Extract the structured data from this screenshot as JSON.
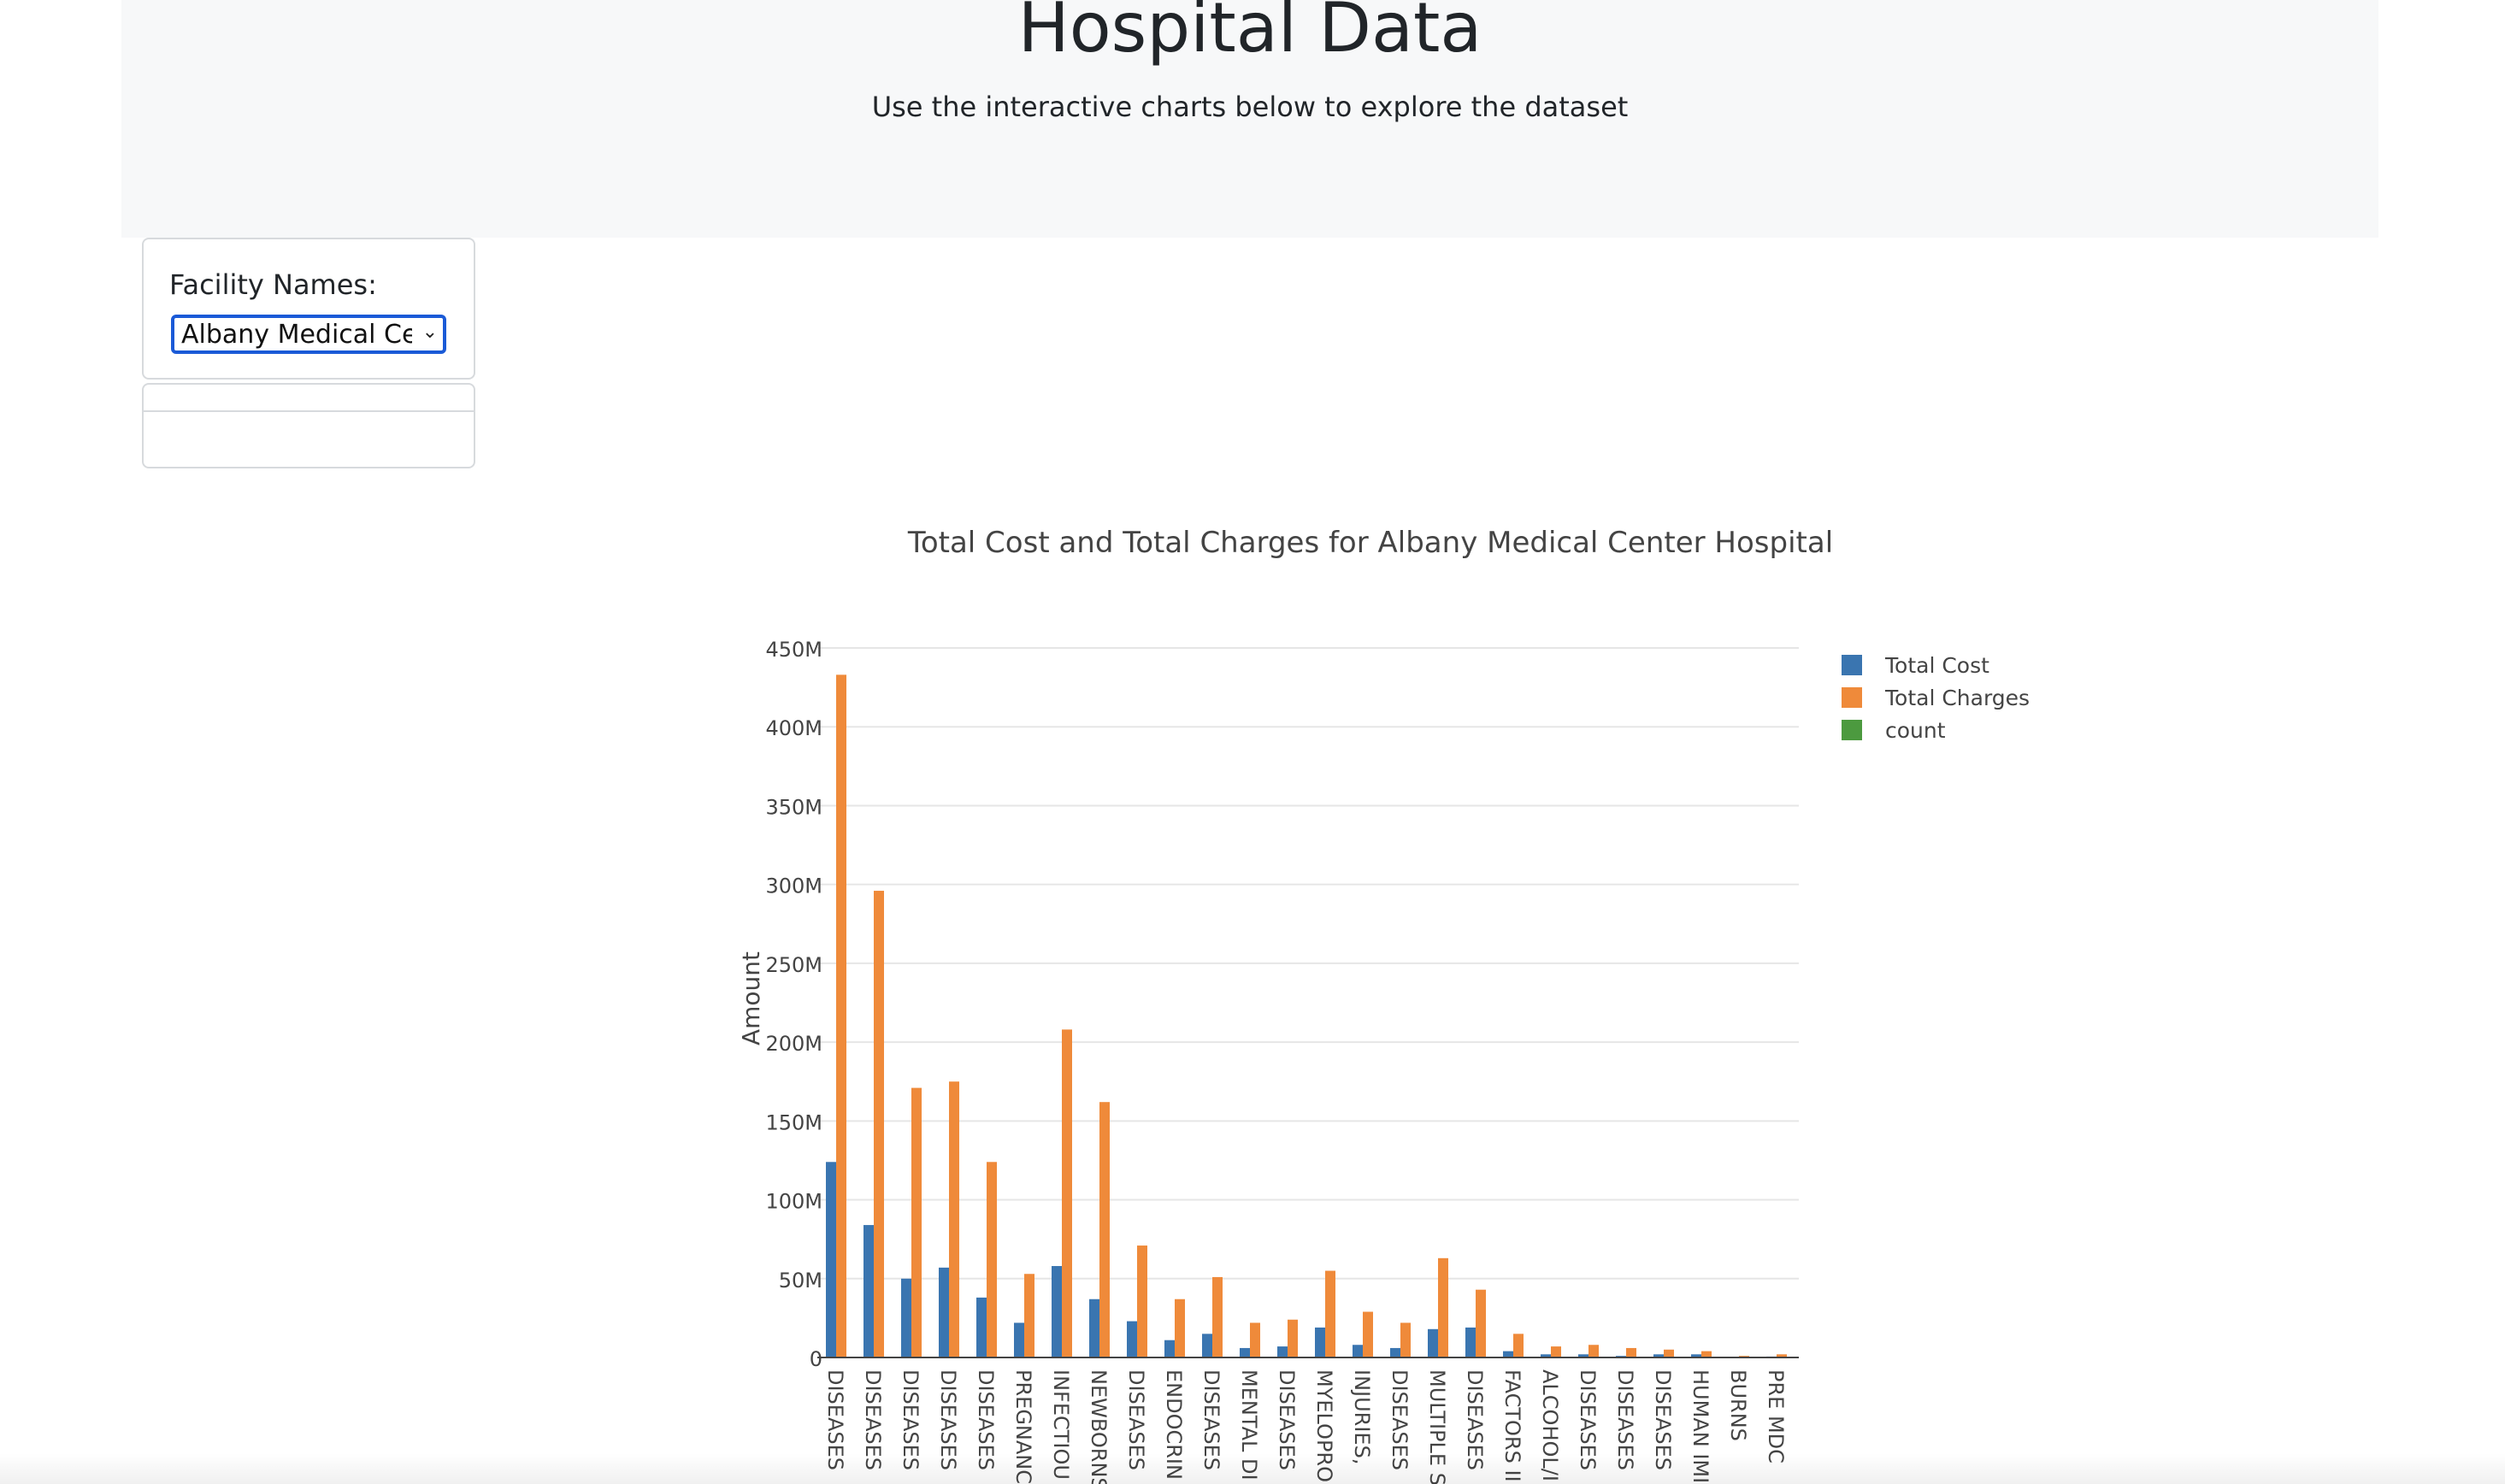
{
  "header": {
    "title": "Hospital Data",
    "subtitle": "Use the interactive charts below to explore the dataset"
  },
  "filter": {
    "label": "Facility Names:",
    "selected": "Albany Medical Center Hospital"
  },
  "colors": {
    "total_cost": "#3a75b0",
    "total_charges": "#ef8a3a",
    "count": "#4c9a3f"
  },
  "chart_data": {
    "type": "bar",
    "title": "Total Cost and Total Charges for Albany Medical Center Hospital",
    "xlabel": "",
    "ylabel": "Amount",
    "ylim": [
      0,
      450000000
    ],
    "yticks": [
      {
        "value": 0,
        "label": "0"
      },
      {
        "value": 50000000,
        "label": "50M"
      },
      {
        "value": 100000000,
        "label": "100M"
      },
      {
        "value": 150000000,
        "label": "150M"
      },
      {
        "value": 200000000,
        "label": "200M"
      },
      {
        "value": 250000000,
        "label": "250M"
      },
      {
        "value": 300000000,
        "label": "300M"
      },
      {
        "value": 350000000,
        "label": "350M"
      },
      {
        "value": 400000000,
        "label": "400M"
      },
      {
        "value": 450000000,
        "label": "450M"
      }
    ],
    "grid": true,
    "legend_position": "top-right",
    "categories": [
      "DISEASES",
      "DISEASES",
      "DISEASES",
      "DISEASES",
      "DISEASES",
      "PREGNANC",
      "INFECTIOU",
      "NEWBORNS",
      "DISEASES",
      "ENDOCRIN",
      "DISEASES",
      "MENTAL DI",
      "DISEASES",
      "MYELOPRO",
      "INJURIES,",
      "DISEASES",
      "MULTIPLE S",
      "DISEASES",
      "FACTORS II",
      "ALCOHOL/I",
      "DISEASES",
      "DISEASES",
      "DISEASES",
      "HUMAN IMI",
      "BURNS",
      "PRE MDC"
    ],
    "series": [
      {
        "name": "Total Cost",
        "color": "#3a75b0",
        "values": [
          124000000,
          84000000,
          50000000,
          57000000,
          38000000,
          22000000,
          58000000,
          37000000,
          23000000,
          11000000,
          15000000,
          6000000,
          7000000,
          19000000,
          8000000,
          6000000,
          18000000,
          19000000,
          4000000,
          2000000,
          2000000,
          1000000,
          2000000,
          2000000,
          500000,
          600000
        ]
      },
      {
        "name": "Total Charges",
        "color": "#ef8a3a",
        "values": [
          433000000,
          296000000,
          171000000,
          175000000,
          124000000,
          53000000,
          208000000,
          162000000,
          71000000,
          37000000,
          51000000,
          22000000,
          24000000,
          55000000,
          29000000,
          22000000,
          63000000,
          43000000,
          15000000,
          7000000,
          8000000,
          6000000,
          5000000,
          4000000,
          1000000,
          2000000
        ]
      },
      {
        "name": "count",
        "color": "#4c9a3f",
        "values": [
          2500,
          2100,
          1700,
          1500,
          1100,
          1900,
          1200,
          1800,
          700,
          500,
          400,
          450,
          300,
          250,
          350,
          300,
          200,
          250,
          150,
          100,
          120,
          80,
          60,
          40,
          10,
          5
        ]
      }
    ]
  }
}
